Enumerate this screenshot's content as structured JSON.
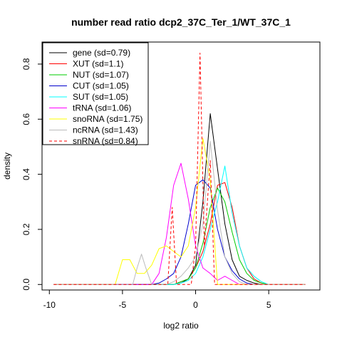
{
  "chart_data": {
    "type": "line",
    "title": "number read ratio dcp2_37C_Ter_1/WT_37C_1",
    "xlabel": "log2 ratio",
    "ylabel": "density",
    "xlim": [
      -10.5,
      8.5
    ],
    "ylim": [
      -0.02,
      0.88
    ],
    "x_ticks": [
      -10,
      -5,
      0,
      5
    ],
    "x_tick_labels": [
      "-10",
      "-5",
      "0",
      "5"
    ],
    "y_ticks": [
      0.0,
      0.2,
      0.4,
      0.6,
      0.8
    ],
    "y_tick_labels": [
      "0.0",
      "0.2",
      "0.4",
      "0.6",
      "0.8"
    ],
    "grid": false,
    "legend_position": "top-left",
    "series": [
      {
        "name": "gene (sd=0.79)",
        "color": "#000000",
        "dash": "solid",
        "x": [
          -9.7,
          -1.5,
          -1.0,
          -0.5,
          0.0,
          0.5,
          1.0,
          1.5,
          2.0,
          2.5,
          3.0,
          3.5,
          4.0,
          4.5,
          5.0,
          7.5
        ],
        "y": [
          0.0,
          0.0,
          0.005,
          0.02,
          0.07,
          0.3,
          0.62,
          0.42,
          0.22,
          0.09,
          0.03,
          0.015,
          0.005,
          0.0,
          0.0,
          0.0
        ]
      },
      {
        "name": "XUT (sd=1.1)",
        "color": "#ff0000",
        "dash": "solid",
        "x": [
          -9.7,
          -2.0,
          -1.5,
          -1.0,
          -0.5,
          0.0,
          0.5,
          1.0,
          1.5,
          2.0,
          2.5,
          3.0,
          3.5,
          4.0,
          4.5,
          5.0,
          7.5
        ],
        "y": [
          0.0,
          0.0,
          0.0,
          0.01,
          0.02,
          0.06,
          0.12,
          0.22,
          0.36,
          0.37,
          0.28,
          0.14,
          0.06,
          0.02,
          0.005,
          0.0,
          0.0
        ]
      },
      {
        "name": "NUT (sd=1.07)",
        "color": "#00cc00",
        "dash": "solid",
        "x": [
          -9.7,
          -2.0,
          -1.5,
          -1.0,
          -0.5,
          0.0,
          0.5,
          1.0,
          1.5,
          2.0,
          2.5,
          3.0,
          3.5,
          4.0,
          4.5,
          5.0,
          7.5
        ],
        "y": [
          0.0,
          0.0,
          0.0,
          0.01,
          0.02,
          0.06,
          0.15,
          0.28,
          0.35,
          0.3,
          0.19,
          0.09,
          0.04,
          0.015,
          0.005,
          0.0,
          0.0
        ]
      },
      {
        "name": "CUT (sd=1.05)",
        "color": "#0000cc",
        "dash": "solid",
        "x": [
          -9.7,
          -3.0,
          -2.5,
          -2.0,
          -1.5,
          -1.0,
          -0.5,
          0.0,
          0.5,
          1.0,
          1.5,
          2.0,
          2.5,
          3.0,
          3.5,
          4.0,
          4.5,
          7.5
        ],
        "y": [
          0.0,
          0.0,
          0.005,
          0.02,
          0.04,
          0.1,
          0.22,
          0.36,
          0.38,
          0.35,
          0.2,
          0.1,
          0.05,
          0.02,
          0.005,
          0.0,
          0.0,
          0.0
        ]
      },
      {
        "name": "SUT (sd=1.05)",
        "color": "#00ffff",
        "dash": "solid",
        "x": [
          -9.7,
          -1.5,
          -1.0,
          -0.5,
          0.0,
          0.5,
          1.0,
          1.5,
          2.0,
          2.5,
          3.0,
          3.5,
          4.0,
          4.5,
          5.0,
          7.5
        ],
        "y": [
          0.0,
          0.0,
          0.005,
          0.015,
          0.04,
          0.1,
          0.2,
          0.3,
          0.43,
          0.26,
          0.14,
          0.06,
          0.03,
          0.01,
          0.0,
          0.0
        ]
      },
      {
        "name": "tRNA (sd=1.06)",
        "color": "#ff00ff",
        "dash": "solid",
        "x": [
          -9.7,
          -3.0,
          -2.5,
          -2.0,
          -1.5,
          -1.0,
          -0.5,
          0.0,
          0.5,
          1.0,
          1.5,
          2.0,
          2.5,
          3.0,
          7.5
        ],
        "y": [
          0.0,
          0.0,
          0.04,
          0.17,
          0.36,
          0.44,
          0.31,
          0.14,
          0.06,
          0.04,
          0.015,
          0.03,
          0.015,
          0.0,
          0.0
        ]
      },
      {
        "name": "snoRNA (sd=1.75)",
        "color": "#ffff00",
        "dash": "solid",
        "x": [
          -9.7,
          -5.5,
          -5.0,
          -4.5,
          -4.0,
          -3.5,
          -3.0,
          -2.5,
          -2.0,
          -1.5,
          -1.0,
          -0.5,
          0.0,
          0.5,
          1.0,
          1.5,
          2.0,
          7.5
        ],
        "y": [
          0.0,
          0.0,
          0.09,
          0.09,
          0.04,
          0.04,
          0.07,
          0.13,
          0.14,
          0.12,
          0.1,
          0.14,
          0.28,
          0.53,
          0.38,
          0.0,
          0.0,
          0.0
        ]
      },
      {
        "name": "ncRNA (sd=1.43)",
        "color": "#bbbbbb",
        "dash": "solid",
        "x": [
          -9.7,
          -4.3,
          -4.0,
          -3.7,
          -3.4,
          -3.0,
          -2.5,
          -2.0,
          -1.5,
          -1.0,
          -0.5,
          0.0,
          0.5,
          1.0,
          1.5,
          2.0,
          2.5,
          3.0,
          3.5,
          7.5
        ],
        "y": [
          0.0,
          0.0,
          0.06,
          0.11,
          0.06,
          0.0,
          0.0,
          0.0,
          0.01,
          0.03,
          0.06,
          0.1,
          0.22,
          0.52,
          0.27,
          0.1,
          0.04,
          0.01,
          0.0,
          0.0
        ]
      },
      {
        "name": "snRNA (sd=0.84)",
        "color": "#ff0000",
        "dash": "dashed",
        "x": [
          -9.7,
          -2.2,
          -1.9,
          -1.6,
          -1.3,
          -1.0,
          -0.6,
          -0.3,
          0.0,
          0.3,
          0.6,
          1.0,
          1.3,
          1.6,
          1.9,
          7.5
        ],
        "y": [
          0.0,
          0.0,
          0.0,
          0.28,
          0.0,
          0.0,
          0.0,
          0.0,
          0.14,
          0.84,
          0.14,
          0.45,
          0.0,
          0.0,
          0.0,
          0.0
        ]
      }
    ]
  }
}
